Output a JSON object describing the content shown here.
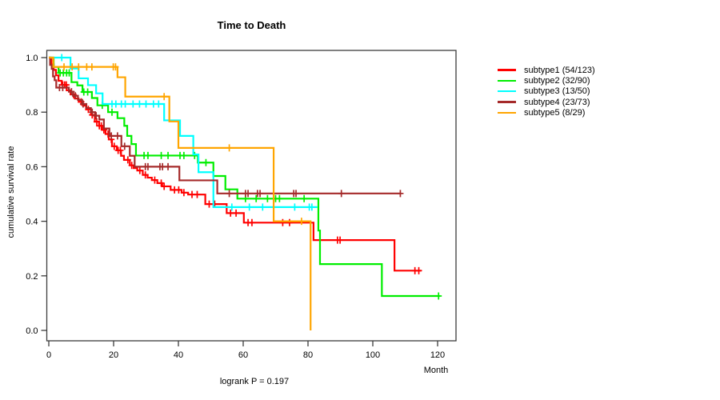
{
  "title": "Time to Death",
  "annotation": "logrank P = 0.197",
  "chart_data": {
    "type": "line",
    "subtype": "kaplan-meier-step",
    "title": "Time to Death",
    "xlabel": "Month",
    "ylabel": "cumulative survival rate",
    "xlim": [
      0,
      126
    ],
    "ylim": [
      0.0,
      1.0
    ],
    "grid": false,
    "legend_position": "right-outside",
    "x_ticks": [
      {
        "label": "0",
        "value": 0
      },
      {
        "label": "20",
        "value": 20
      },
      {
        "label": "40",
        "value": 40
      },
      {
        "label": "60",
        "value": 60
      },
      {
        "label": "80",
        "value": 80
      },
      {
        "label": "100",
        "value": 100
      },
      {
        "label": "120",
        "value": 120
      }
    ],
    "y_ticks": [
      {
        "label": "0.0",
        "value": 0.0
      },
      {
        "label": "0.2",
        "value": 0.2
      },
      {
        "label": "0.4",
        "value": 0.4
      },
      {
        "label": "0.6",
        "value": 0.6
      },
      {
        "label": "0.8",
        "value": 0.8
      },
      {
        "label": "1.0",
        "value": 1.0
      }
    ],
    "series": [
      {
        "name": "subtype1 (54/123)",
        "events": "54/123",
        "color": "#ff0000",
        "end_month": 115,
        "steps": [
          [
            0,
            1.0
          ],
          [
            0.8,
            0.975
          ],
          [
            1.5,
            0.955
          ],
          [
            2.2,
            0.935
          ],
          [
            3,
            0.915
          ],
          [
            4,
            0.9
          ],
          [
            5.5,
            0.88
          ],
          [
            6.7,
            0.865
          ],
          [
            8,
            0.85
          ],
          [
            9.2,
            0.838
          ],
          [
            10.5,
            0.824
          ],
          [
            11.5,
            0.81
          ],
          [
            13,
            0.79
          ],
          [
            14.2,
            0.765
          ],
          [
            15.5,
            0.75
          ],
          [
            16.5,
            0.735
          ],
          [
            17.5,
            0.72
          ],
          [
            18.5,
            0.7
          ],
          [
            19.5,
            0.675
          ],
          [
            21,
            0.66
          ],
          [
            22.3,
            0.64
          ],
          [
            23.2,
            0.625
          ],
          [
            25,
            0.605
          ],
          [
            26.2,
            0.595
          ],
          [
            27.3,
            0.586
          ],
          [
            29,
            0.57
          ],
          [
            30.5,
            0.56
          ],
          [
            31.8,
            0.551
          ],
          [
            33.5,
            0.54
          ],
          [
            35,
            0.528
          ],
          [
            37.6,
            0.515
          ],
          [
            41,
            0.505
          ],
          [
            43,
            0.498
          ],
          [
            48.3,
            0.463
          ],
          [
            54.9,
            0.43
          ],
          [
            60.2,
            0.395
          ],
          [
            81.7,
            0.331
          ],
          [
            106.7,
            0.219
          ]
        ],
        "censors": [
          4.3,
          4.9,
          5.4,
          7.6,
          10,
          12.2,
          13.4,
          14.8,
          15.6,
          16.2,
          17,
          18.3,
          19.3,
          20.2,
          21.4,
          22.1,
          24.4,
          25.6,
          28.1,
          29.8,
          32.7,
          34.7,
          35.6,
          38.8,
          40.1,
          41.7,
          44.2,
          45.8,
          49.5,
          51.2,
          56.1,
          57.8,
          61.5,
          62.7,
          72.2,
          74.3,
          89.1,
          89.9,
          113,
          114.2
        ]
      },
      {
        "name": "subtype2 (32/90)",
        "events": "32/90",
        "color": "#00ee00",
        "end_month": 120.7,
        "steps": [
          [
            0,
            1.0
          ],
          [
            1.5,
            0.966
          ],
          [
            3,
            0.944
          ],
          [
            7,
            0.91
          ],
          [
            8.8,
            0.898
          ],
          [
            10.4,
            0.874
          ],
          [
            13.3,
            0.852
          ],
          [
            15,
            0.825
          ],
          [
            18.3,
            0.8
          ],
          [
            21.2,
            0.778
          ],
          [
            23.3,
            0.75
          ],
          [
            24.2,
            0.713
          ],
          [
            25.5,
            0.683
          ],
          [
            26.9,
            0.641
          ],
          [
            46,
            0.615
          ],
          [
            50.8,
            0.566
          ],
          [
            54.5,
            0.517
          ],
          [
            58.2,
            0.483
          ],
          [
            83.2,
            0.366
          ],
          [
            83.7,
            0.243
          ],
          [
            102.8,
            0.126
          ]
        ],
        "censors": [
          3.5,
          4.5,
          5.5,
          6.3,
          10.8,
          12,
          16.5,
          19.5,
          29.4,
          30.6,
          34.7,
          36.8,
          40.5,
          41.7,
          45,
          48.5,
          60.7,
          64,
          67.5,
          70,
          71.2,
          78.8,
          120.3
        ]
      },
      {
        "name": "subtype3 (13/50)",
        "events": "13/50",
        "color": "#00ffff",
        "end_month": 82.9,
        "steps": [
          [
            0,
            1.0
          ],
          [
            6.7,
            0.96
          ],
          [
            9.2,
            0.924
          ],
          [
            12.1,
            0.899
          ],
          [
            14.6,
            0.869
          ],
          [
            16.6,
            0.83
          ],
          [
            35.6,
            0.77
          ],
          [
            40.5,
            0.713
          ],
          [
            44.6,
            0.645
          ],
          [
            46.2,
            0.58
          ],
          [
            50.8,
            0.452
          ]
        ],
        "censors": [
          4,
          19.5,
          20.7,
          22.4,
          23.6,
          26,
          28,
          30,
          32.3,
          33.9,
          56.5,
          61.9,
          66,
          75.9,
          80.4,
          81.2
        ]
      },
      {
        "name": "subtype4 (23/73)",
        "events": "23/73",
        "color": "#a52a2a",
        "end_month": 108.8,
        "steps": [
          [
            0,
            1.0
          ],
          [
            0.4,
            0.973
          ],
          [
            0.9,
            0.959
          ],
          [
            1.3,
            0.931
          ],
          [
            1.8,
            0.917
          ],
          [
            2.3,
            0.89
          ],
          [
            6.2,
            0.875
          ],
          [
            7.5,
            0.86
          ],
          [
            9,
            0.845
          ],
          [
            10.3,
            0.83
          ],
          [
            11.6,
            0.815
          ],
          [
            13,
            0.8
          ],
          [
            14.3,
            0.787
          ],
          [
            15.6,
            0.773
          ],
          [
            17,
            0.74
          ],
          [
            18.7,
            0.713
          ],
          [
            22.4,
            0.675
          ],
          [
            25,
            0.64
          ],
          [
            26.5,
            0.6
          ],
          [
            40.3,
            0.55
          ],
          [
            52,
            0.502
          ]
        ],
        "censors": [
          3.3,
          4.3,
          7,
          8.2,
          10.6,
          13.4,
          14.6,
          19.3,
          21.2,
          23.4,
          29.8,
          30.6,
          34.3,
          35.1,
          36.8,
          55.7,
          60.7,
          61.5,
          64.4,
          65.2,
          75.6,
          76.3,
          90.3,
          108.5
        ]
      },
      {
        "name": "subtype5 (8/29)",
        "events": "8/29",
        "color": "#ffa500",
        "end_month": 80.8,
        "steps": [
          [
            0,
            1.0
          ],
          [
            1.4,
            0.966
          ],
          [
            21.2,
            0.928
          ],
          [
            23.6,
            0.857
          ],
          [
            37.2,
            0.766
          ],
          [
            40,
            0.669
          ],
          [
            69.4,
            0.4
          ],
          [
            80.8,
            0.0
          ]
        ],
        "censors": [
          4.7,
          7.2,
          9.2,
          11.7,
          13.3,
          19.9,
          20.6,
          35.6,
          55.7,
          78
        ]
      }
    ]
  }
}
